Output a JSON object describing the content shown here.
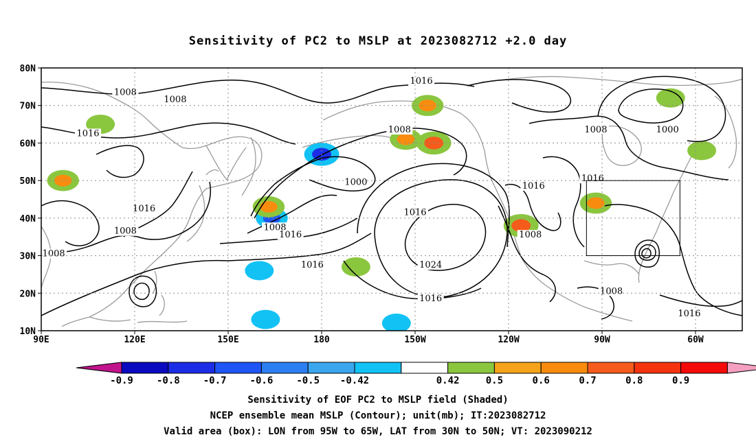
{
  "title": "Sensitivity of PC2 to MSLP at 2023082712 +2.0 day",
  "map": {
    "lat_labels": [
      "80N",
      "70N",
      "60N",
      "50N",
      "40N",
      "30N",
      "20N",
      "10N"
    ],
    "lon_labels": [
      "90E",
      "120E",
      "150E",
      "180",
      "150W",
      "120W",
      "90W",
      "60W"
    ],
    "contour_labels": [
      {
        "text": "1008",
        "lon": 117,
        "lat": 73
      },
      {
        "text": "1008",
        "lon": 133,
        "lat": 71
      },
      {
        "text": "1016",
        "lon": 105,
        "lat": 62
      },
      {
        "text": "1016",
        "lon": 123,
        "lat": 42
      },
      {
        "text": "1008",
        "lon": 117,
        "lat": 36
      },
      {
        "text": "1008",
        "lon": 94,
        "lat": 30
      },
      {
        "text": "1016",
        "lon": 212,
        "lat": 76
      },
      {
        "text": "1008",
        "lon": 205,
        "lat": 63
      },
      {
        "text": "1000",
        "lon": 191,
        "lat": 49
      },
      {
        "text": "1016",
        "lon": 210,
        "lat": 41
      },
      {
        "text": "1008",
        "lon": 165,
        "lat": 37
      },
      {
        "text": "1016",
        "lon": 170,
        "lat": 35
      },
      {
        "text": "1016",
        "lon": 177,
        "lat": 27
      },
      {
        "text": "1024",
        "lon": 215,
        "lat": 27
      },
      {
        "text": "1016",
        "lon": 215,
        "lat": 18
      },
      {
        "text": "1016",
        "lon": 248,
        "lat": 48
      },
      {
        "text": "1008",
        "lon": 247,
        "lat": 35
      },
      {
        "text": "1008",
        "lon": 268,
        "lat": 63
      },
      {
        "text": "1016",
        "lon": 267,
        "lat": 50
      },
      {
        "text": "1000",
        "lon": 291,
        "lat": 63
      },
      {
        "text": "1008",
        "lon": 273,
        "lat": 20
      },
      {
        "text": "1016",
        "lon": 298,
        "lat": 14
      }
    ],
    "valid_box": {
      "lon_west": 265,
      "lon_east": 295,
      "lat_south": 30,
      "lat_north": 50
    },
    "shading": [
      {
        "lon": 97,
        "lat": 50,
        "value": 0.6
      },
      {
        "lon": 109,
        "lat": 65,
        "value": 0.5
      },
      {
        "lon": 180,
        "lat": 57,
        "value": -0.7
      },
      {
        "lon": 164,
        "lat": 40,
        "value": -0.6
      },
      {
        "lon": 163,
        "lat": 43,
        "value": 0.6
      },
      {
        "lon": 160,
        "lat": 26,
        "value": -0.5
      },
      {
        "lon": 162,
        "lat": 13,
        "value": -0.5
      },
      {
        "lon": 191,
        "lat": 27,
        "value": 0.5
      },
      {
        "lon": 204,
        "lat": 12,
        "value": -0.5
      },
      {
        "lon": 207,
        "lat": 61,
        "value": 0.6
      },
      {
        "lon": 216,
        "lat": 60,
        "value": 0.7
      },
      {
        "lon": 214,
        "lat": 70,
        "value": 0.6
      },
      {
        "lon": 244,
        "lat": 38,
        "value": 0.7
      },
      {
        "lon": 268,
        "lat": 44,
        "value": 0.6
      },
      {
        "lon": 292,
        "lat": 72,
        "value": 0.5
      },
      {
        "lon": 302,
        "lat": 58,
        "value": 0.5
      }
    ]
  },
  "colorbar": {
    "levels": [
      "-0.9",
      "-0.8",
      "-0.7",
      "-0.6",
      "-0.5",
      "-0.42",
      "0.42",
      "0.5",
      "0.6",
      "0.7",
      "0.8",
      "0.9"
    ],
    "colors": {
      "neg_arrow": "#c0148c",
      "neg": [
        "#0a0abf",
        "#1b2de6",
        "#1f55f5",
        "#2c7ff0",
        "#3aa6ee",
        "#12c2f5"
      ],
      "neutral": "#ffffff",
      "pos": [
        "#8bc63f",
        "#f5a31a",
        "#f98c0e",
        "#f55b1b",
        "#f5330f",
        "#f50a0a"
      ],
      "pos_arrow": "#f5a0c0"
    }
  },
  "footer": {
    "line1": "Sensitivity of EOF PC2 to MSLP field (Shaded)",
    "line2": "NCEP ensemble mean MSLP (Contour); unit(mb); IT:2023082712",
    "line3": "Valid area (box): LON from 95W to 65W, LAT from 30N to 50N; VT: 2023090212"
  }
}
